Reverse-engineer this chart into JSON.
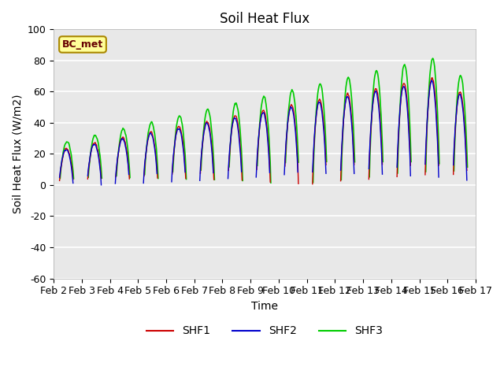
{
  "title": "Soil Heat Flux",
  "ylabel": "Soil Heat Flux (W/m2)",
  "xlabel": "Time",
  "ylim": [
    -60,
    100
  ],
  "yticks": [
    -60,
    -40,
    -20,
    0,
    20,
    40,
    60,
    80,
    100
  ],
  "xtick_labels": [
    "Feb 2",
    "Feb 3",
    "Feb 4",
    "Feb 5",
    "Feb 6",
    "Feb 7",
    "Feb 8",
    "Feb 9",
    "Feb 10",
    "Feb 11",
    "Feb 12",
    "Feb 13",
    "Feb 14",
    "Feb 15",
    "Feb 16",
    "Feb 17"
  ],
  "colors": {
    "SHF1": "#cc0000",
    "SHF2": "#0000cc",
    "SHF3": "#00cc00"
  },
  "legend_entries": [
    "SHF1",
    "SHF2",
    "SHF3"
  ],
  "annotation_text": "BC_met",
  "annotation_bg": "#ffff99",
  "annotation_border": "#aa8800",
  "bg_color": "#e8e8e8",
  "title_fontsize": 12,
  "label_fontsize": 10,
  "tick_fontsize": 9
}
